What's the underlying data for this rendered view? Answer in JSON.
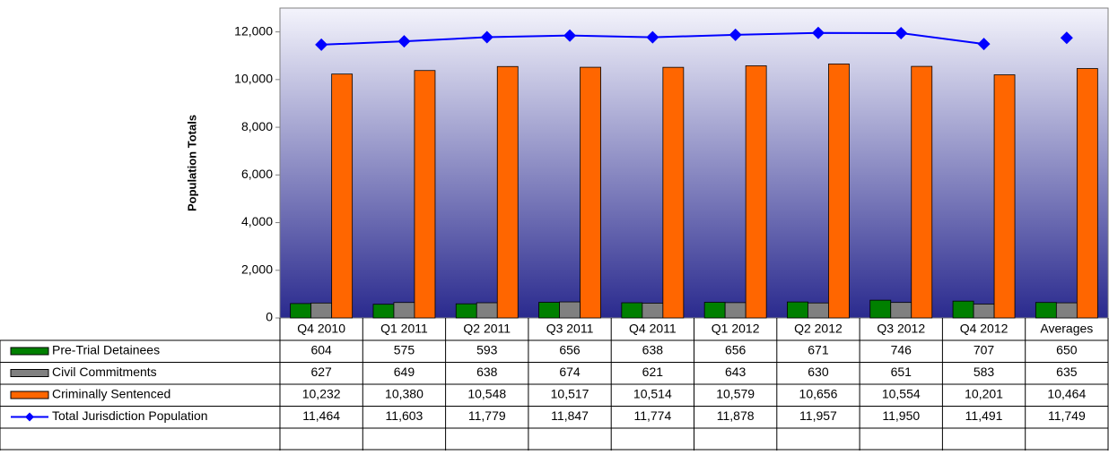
{
  "chart_data": {
    "type": "bar",
    "y_label": "Population Totals",
    "categories": [
      "Q4 2010",
      "Q1 2011",
      "Q2 2011",
      "Q3 2011",
      "Q4 2011",
      "Q1 2012",
      "Q2 2012",
      "Q3 2012",
      "Q4 2012",
      "Averages"
    ],
    "ylim": [
      0,
      13000
    ],
    "yticks": [
      0,
      {
        "value": 2000,
        "label": "2,000"
      },
      {
        "value": 4000,
        "label": "4,000"
      },
      {
        "value": 6000,
        "label": "6,000"
      },
      {
        "value": 8000,
        "label": "8,000"
      },
      {
        "value": 10000,
        "label": "10,000"
      },
      {
        "value": 12000,
        "label": "12,000"
      }
    ],
    "series": [
      {
        "name": "Pre-Trial Detainees",
        "type": "bar",
        "color": "#008000",
        "values": [
          604,
          575,
          593,
          656,
          638,
          656,
          671,
          746,
          707,
          650
        ],
        "value_labels": [
          "604",
          "575",
          "593",
          "656",
          "638",
          "656",
          "671",
          "746",
          "707",
          "650"
        ]
      },
      {
        "name": "Civil Commitments",
        "type": "bar",
        "color": "#808080",
        "values": [
          627,
          649,
          638,
          674,
          621,
          643,
          630,
          651,
          583,
          635
        ],
        "value_labels": [
          "627",
          "649",
          "638",
          "674",
          "621",
          "643",
          "630",
          "651",
          "583",
          "635"
        ]
      },
      {
        "name": "Criminally Sentenced",
        "type": "bar",
        "color": "#ff6600",
        "values": [
          10232,
          10380,
          10548,
          10517,
          10514,
          10579,
          10656,
          10554,
          10201,
          10464
        ],
        "value_labels": [
          "10,232",
          "10,380",
          "10,548",
          "10,517",
          "10,514",
          "10,579",
          "10,656",
          "10,554",
          "10,201",
          "10,464"
        ]
      },
      {
        "name": "Total Jurisdiction Population",
        "type": "line",
        "color": "#0000ff",
        "values": [
          11464,
          11603,
          11779,
          11847,
          11774,
          11878,
          11957,
          11950,
          11491,
          11749
        ],
        "value_labels": [
          "11,464",
          "11,603",
          "11,779",
          "11,847",
          "11,774",
          "11,878",
          "11,957",
          "11,950",
          "11,491",
          "11,749"
        ]
      }
    ]
  }
}
